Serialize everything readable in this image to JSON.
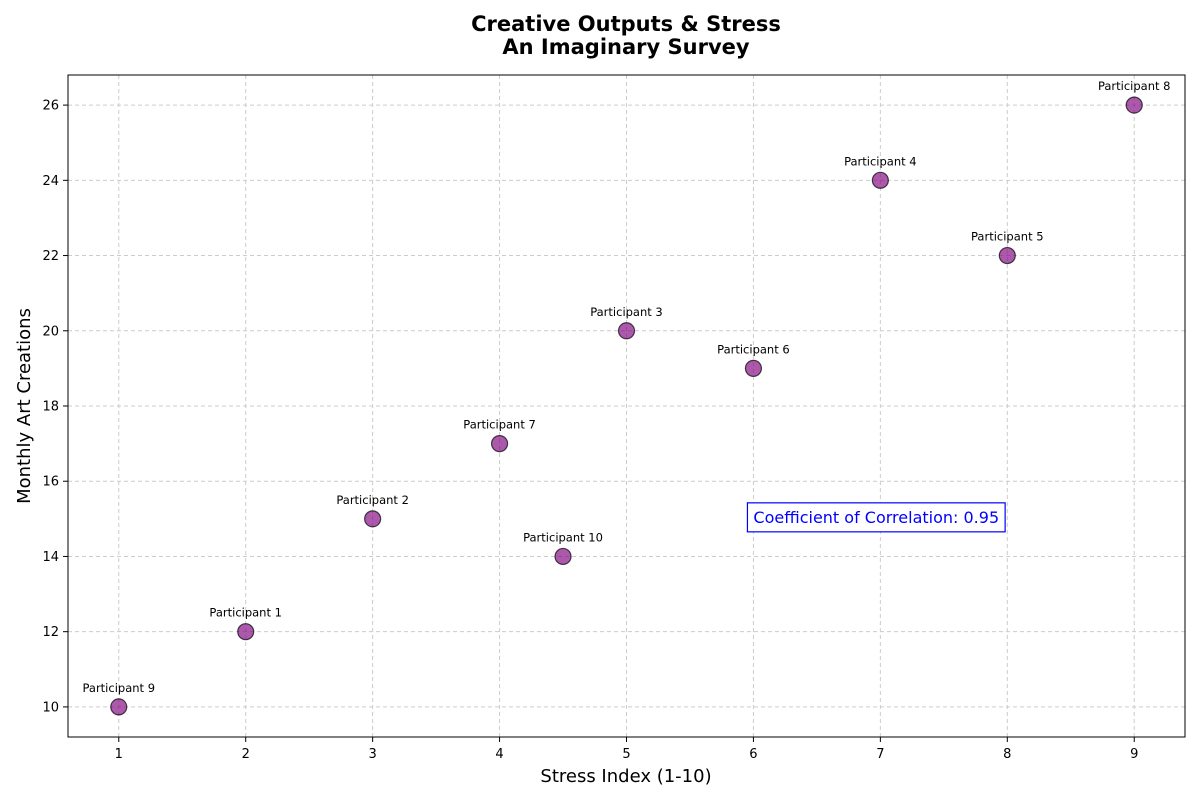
{
  "chart_data": {
    "type": "scatter",
    "title": "Creative Outputs & Stress",
    "subtitle": "An Imaginary Survey",
    "xlabel": "Stress Index (1-10)",
    "ylabel": "Monthly Art Creations",
    "xlim": [
      0.6,
      9.4
    ],
    "ylim": [
      9.2,
      26.8
    ],
    "xticks": [
      1,
      2,
      3,
      4,
      5,
      6,
      7,
      8,
      9
    ],
    "yticks": [
      10,
      12,
      14,
      16,
      18,
      20,
      22,
      24,
      26
    ],
    "grid": true,
    "marker_color": "#800080",
    "marker_edge_color": "#000000",
    "points": [
      {
        "label": "Participant 1",
        "x": 2,
        "y": 12
      },
      {
        "label": "Participant 2",
        "x": 3,
        "y": 15
      },
      {
        "label": "Participant 3",
        "x": 5,
        "y": 20
      },
      {
        "label": "Participant 4",
        "x": 7,
        "y": 24
      },
      {
        "label": "Participant 5",
        "x": 8,
        "y": 22
      },
      {
        "label": "Participant 6",
        "x": 6,
        "y": 19
      },
      {
        "label": "Participant 7",
        "x": 4,
        "y": 17
      },
      {
        "label": "Participant 8",
        "x": 9,
        "y": 26
      },
      {
        "label": "Participant 9",
        "x": 1,
        "y": 10
      },
      {
        "label": "Participant 10",
        "x": 4.5,
        "y": 14
      }
    ],
    "annotation": {
      "text": "Coefficient of Correlation: 0.95",
      "x": 6,
      "y": 15,
      "color": "#0000ff"
    }
  }
}
